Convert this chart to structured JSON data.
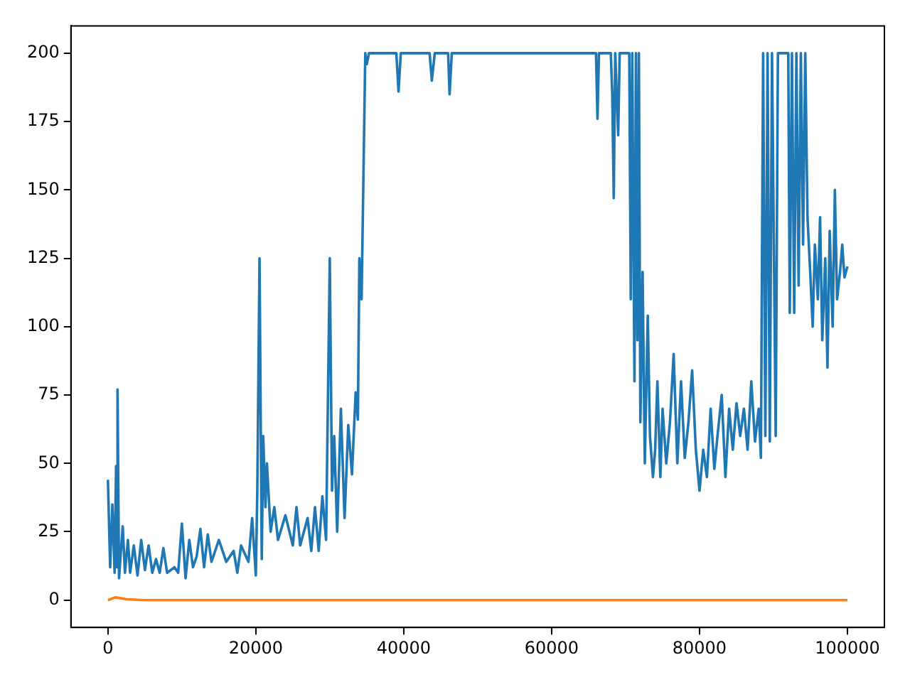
{
  "chart_data": {
    "type": "line",
    "xlim": [
      -5000,
      105000
    ],
    "xticks": [
      0,
      20000,
      40000,
      60000,
      80000,
      100000
    ],
    "ylim": [
      -10,
      210
    ],
    "yticks": [
      0,
      25,
      50,
      75,
      100,
      125,
      150,
      175,
      200
    ],
    "grid": false,
    "legend": false,
    "series": [
      {
        "color": "#1f77b4",
        "x": [
          0,
          300,
          600,
          900,
          1100,
          1200,
          1300,
          1500,
          2000,
          2300,
          2700,
          3000,
          3500,
          4000,
          4500,
          5000,
          5500,
          6000,
          6500,
          7000,
          7500,
          8000,
          9000,
          9500,
          10000,
          10500,
          11000,
          11500,
          12000,
          12500,
          13000,
          13500,
          14000,
          15000,
          16000,
          17000,
          17500,
          18000,
          19000,
          19500,
          20000,
          20200,
          20500,
          20800,
          21000,
          21300,
          21500,
          22000,
          22500,
          23000,
          24000,
          25000,
          25500,
          26000,
          27000,
          27500,
          28000,
          28500,
          29000,
          29500,
          30000,
          30300,
          30600,
          31000,
          31500,
          32000,
          32500,
          33000,
          33500,
          33800,
          34000,
          34300,
          34800,
          35000,
          35300,
          39000,
          39300,
          39600,
          43500,
          43800,
          44200,
          46000,
          46200,
          46500,
          66000,
          66200,
          66400,
          68000,
          68200,
          68400,
          68600,
          69000,
          69200,
          70500,
          70700,
          70900,
          71200,
          71400,
          71600,
          71800,
          72000,
          72300,
          72600,
          73000,
          73300,
          73700,
          74000,
          74300,
          74700,
          75000,
          75500,
          76000,
          76500,
          77000,
          77500,
          78000,
          78500,
          79000,
          79500,
          80000,
          80500,
          81000,
          81500,
          82000,
          82500,
          83000,
          83500,
          84000,
          84500,
          85000,
          85500,
          86000,
          86500,
          87000,
          87500,
          88000,
          88300,
          88600,
          88900,
          89200,
          89500,
          89800,
          90300,
          90600,
          92000,
          92200,
          92500,
          92800,
          93100,
          93400,
          93700,
          94000,
          94300,
          94600,
          95000,
          95300,
          95600,
          96000,
          96300,
          96600,
          97000,
          97300,
          97600,
          98000,
          98300,
          98600,
          99000,
          99300,
          99600,
          100000
        ],
        "values": [
          44,
          12,
          35,
          10,
          49,
          12,
          77,
          8,
          27,
          10,
          22,
          10,
          20,
          9,
          22,
          11,
          20,
          10,
          15,
          10,
          19,
          10,
          12,
          10,
          28,
          8,
          22,
          12,
          16,
          26,
          12,
          24,
          14,
          22,
          14,
          18,
          10,
          20,
          14,
          30,
          9,
          40,
          125,
          15,
          60,
          34,
          50,
          25,
          34,
          22,
          31,
          20,
          34,
          20,
          30,
          18,
          34,
          18,
          38,
          22,
          125,
          40,
          60,
          25,
          70,
          30,
          64,
          46,
          76,
          66,
          125,
          110,
          200,
          196,
          200,
          200,
          186,
          200,
          200,
          190,
          200,
          200,
          185,
          200,
          200,
          176,
          200,
          200,
          185,
          147,
          200,
          170,
          200,
          200,
          110,
          200,
          80,
          200,
          95,
          200,
          65,
          120,
          50,
          104,
          60,
          45,
          55,
          80,
          45,
          70,
          50,
          65,
          90,
          50,
          80,
          52,
          65,
          84,
          55,
          40,
          55,
          45,
          70,
          48,
          62,
          75,
          45,
          70,
          55,
          72,
          60,
          70,
          55,
          80,
          58,
          70,
          52,
          200,
          60,
          200,
          58,
          200,
          60,
          200,
          200,
          105,
          200,
          105,
          200,
          115,
          200,
          130,
          200,
          140,
          118,
          100,
          130,
          110,
          140,
          95,
          125,
          85,
          135,
          100,
          150,
          110,
          120,
          130,
          118,
          122
        ]
      },
      {
        "color": "#ff7f0e",
        "x": [
          0,
          1000,
          2500,
          5000,
          100000
        ],
        "values": [
          0,
          1,
          0.3,
          0,
          0
        ]
      }
    ]
  }
}
